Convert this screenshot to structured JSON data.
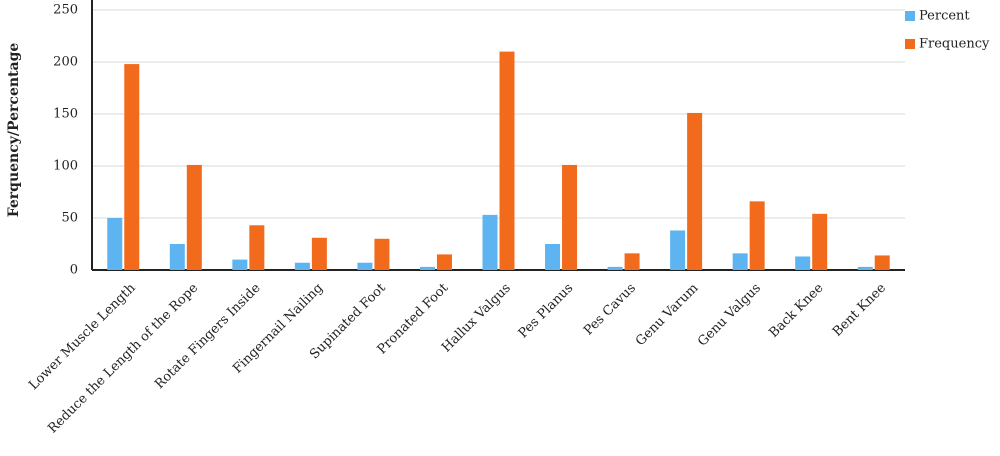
{
  "chart_data": {
    "type": "bar",
    "y_label": "Ferquency/Percentage",
    "categories": [
      "Lower Muscle Length",
      "Reduce the Length of the Rope",
      "Rotate Fingers Inside",
      "Fingernail Nailing",
      "Supinated Foot",
      "Pronated Foot",
      "Hallux Valgus",
      "Pes Planus",
      "Pes Cavus",
      "Genu Varum",
      "Genu Valgus",
      "Back Knee",
      "Bent Knee"
    ],
    "series": [
      {
        "name": "Percent",
        "color": "#5db4f0",
        "values": [
          50,
          25,
          10,
          7,
          7,
          3,
          53,
          25,
          3,
          38,
          16,
          13,
          3
        ]
      },
      {
        "name": "Frequency",
        "color": "#f26b1d",
        "values": [
          198,
          101,
          43,
          31,
          30,
          15,
          210,
          101,
          16,
          151,
          66,
          54,
          14
        ]
      }
    ],
    "ylim": [
      0,
      250
    ],
    "yticks": [
      0,
      50,
      100,
      150,
      200,
      250
    ],
    "grid": true,
    "legend": "top-right"
  }
}
